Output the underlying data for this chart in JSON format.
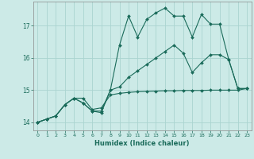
{
  "title": "",
  "xlabel": "Humidex (Indice chaleur)",
  "bg_color": "#cceae7",
  "grid_color": "#aad4d0",
  "line_color": "#1a6b5a",
  "xlim": [
    -0.5,
    23.5
  ],
  "ylim": [
    13.75,
    17.75
  ],
  "yticks": [
    14,
    15,
    16,
    17
  ],
  "xticks": [
    0,
    1,
    2,
    3,
    4,
    5,
    6,
    7,
    8,
    9,
    10,
    11,
    12,
    13,
    14,
    15,
    16,
    17,
    18,
    19,
    20,
    21,
    22,
    23
  ],
  "series1_x": [
    0,
    1,
    2,
    3,
    4,
    5,
    6,
    7,
    8,
    9,
    10,
    11,
    12,
    13,
    14,
    15,
    16,
    17,
    18,
    19,
    20,
    21,
    22,
    23
  ],
  "series1_y": [
    14.0,
    14.1,
    14.2,
    14.55,
    14.75,
    14.75,
    14.4,
    14.45,
    14.85,
    14.9,
    14.93,
    14.95,
    14.96,
    14.97,
    14.98,
    14.98,
    14.99,
    14.99,
    14.99,
    15.0,
    15.0,
    15.0,
    15.0,
    15.05
  ],
  "series2_x": [
    0,
    1,
    2,
    3,
    4,
    5,
    6,
    7,
    8,
    9,
    10,
    11,
    12,
    13,
    14,
    15,
    16,
    17,
    18,
    19,
    20,
    21,
    22,
    23
  ],
  "series2_y": [
    14.0,
    14.1,
    14.2,
    14.55,
    14.75,
    14.6,
    14.35,
    14.3,
    15.0,
    15.1,
    15.4,
    15.6,
    15.8,
    16.0,
    16.2,
    16.4,
    16.15,
    15.55,
    15.85,
    16.1,
    16.1,
    15.95,
    15.05,
    15.05
  ],
  "series3_x": [
    0,
    1,
    2,
    3,
    4,
    5,
    6,
    7,
    8,
    9,
    10,
    11,
    12,
    13,
    14,
    15,
    16,
    17,
    18,
    19,
    20,
    21,
    22,
    23
  ],
  "series3_y": [
    14.0,
    14.1,
    14.2,
    14.55,
    14.75,
    14.6,
    14.35,
    14.35,
    15.0,
    16.4,
    17.3,
    16.65,
    17.2,
    17.4,
    17.55,
    17.3,
    17.3,
    16.65,
    17.35,
    17.05,
    17.05,
    15.95,
    15.05,
    15.05
  ],
  "marker": "D",
  "markersize": 2.0,
  "linewidth": 0.8
}
